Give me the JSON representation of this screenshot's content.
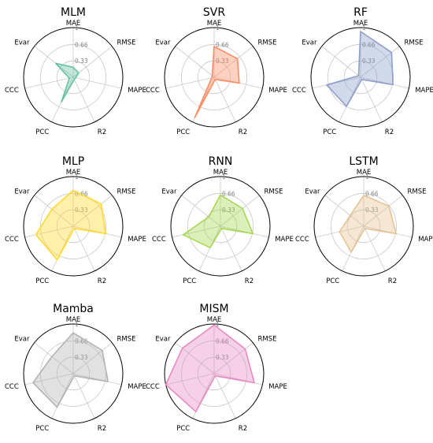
{
  "chart_data": {
    "type": "radar",
    "axes": [
      "MAE",
      "RMSE",
      "MAPE",
      "R2",
      "PCC",
      "CCC",
      "Evar"
    ],
    "rlim": [
      0,
      1
    ],
    "rticks": [
      "0.33",
      "0.66",
      "1"
    ],
    "grid": true,
    "charts": [
      {
        "title": "MLM",
        "color": "#66c2a5",
        "values": [
          0.2,
          0.14,
          0.05,
          0.05,
          0.55,
          0.08,
          0.45
        ]
      },
      {
        "title": "SVR",
        "color": "#fc8d62",
        "values": [
          0.62,
          0.6,
          0.52,
          0.05,
          0.9,
          0.05,
          0.05
        ]
      },
      {
        "title": "RF",
        "color": "#8da0cb",
        "values": [
          0.92,
          0.8,
          0.67,
          0.05,
          0.65,
          0.7,
          0.05
        ]
      },
      {
        "title": "MLP",
        "color": "#ffd92f",
        "values": [
          0.72,
          0.72,
          0.67,
          0.05,
          0.75,
          0.77,
          0.55
        ]
      },
      {
        "title": "RNN",
        "color": "#a6d854",
        "values": [
          0.63,
          0.57,
          0.67,
          0.05,
          0.48,
          0.77,
          0.3
        ]
      },
      {
        "title": "LSTM",
        "color": "#e5c494",
        "values": [
          0.62,
          0.65,
          0.67,
          0.05,
          0.58,
          0.5,
          0.35
        ]
      },
      {
        "title": "Mamba",
        "color": "#b3b3b3",
        "values": [
          0.82,
          0.75,
          0.72,
          0.05,
          0.75,
          0.83,
          0.55
        ]
      },
      {
        "title": "MISM",
        "color": "#e78ac3",
        "values": [
          0.98,
          0.8,
          0.83,
          0.05,
          0.85,
          1.0,
          0.82
        ]
      }
    ]
  }
}
